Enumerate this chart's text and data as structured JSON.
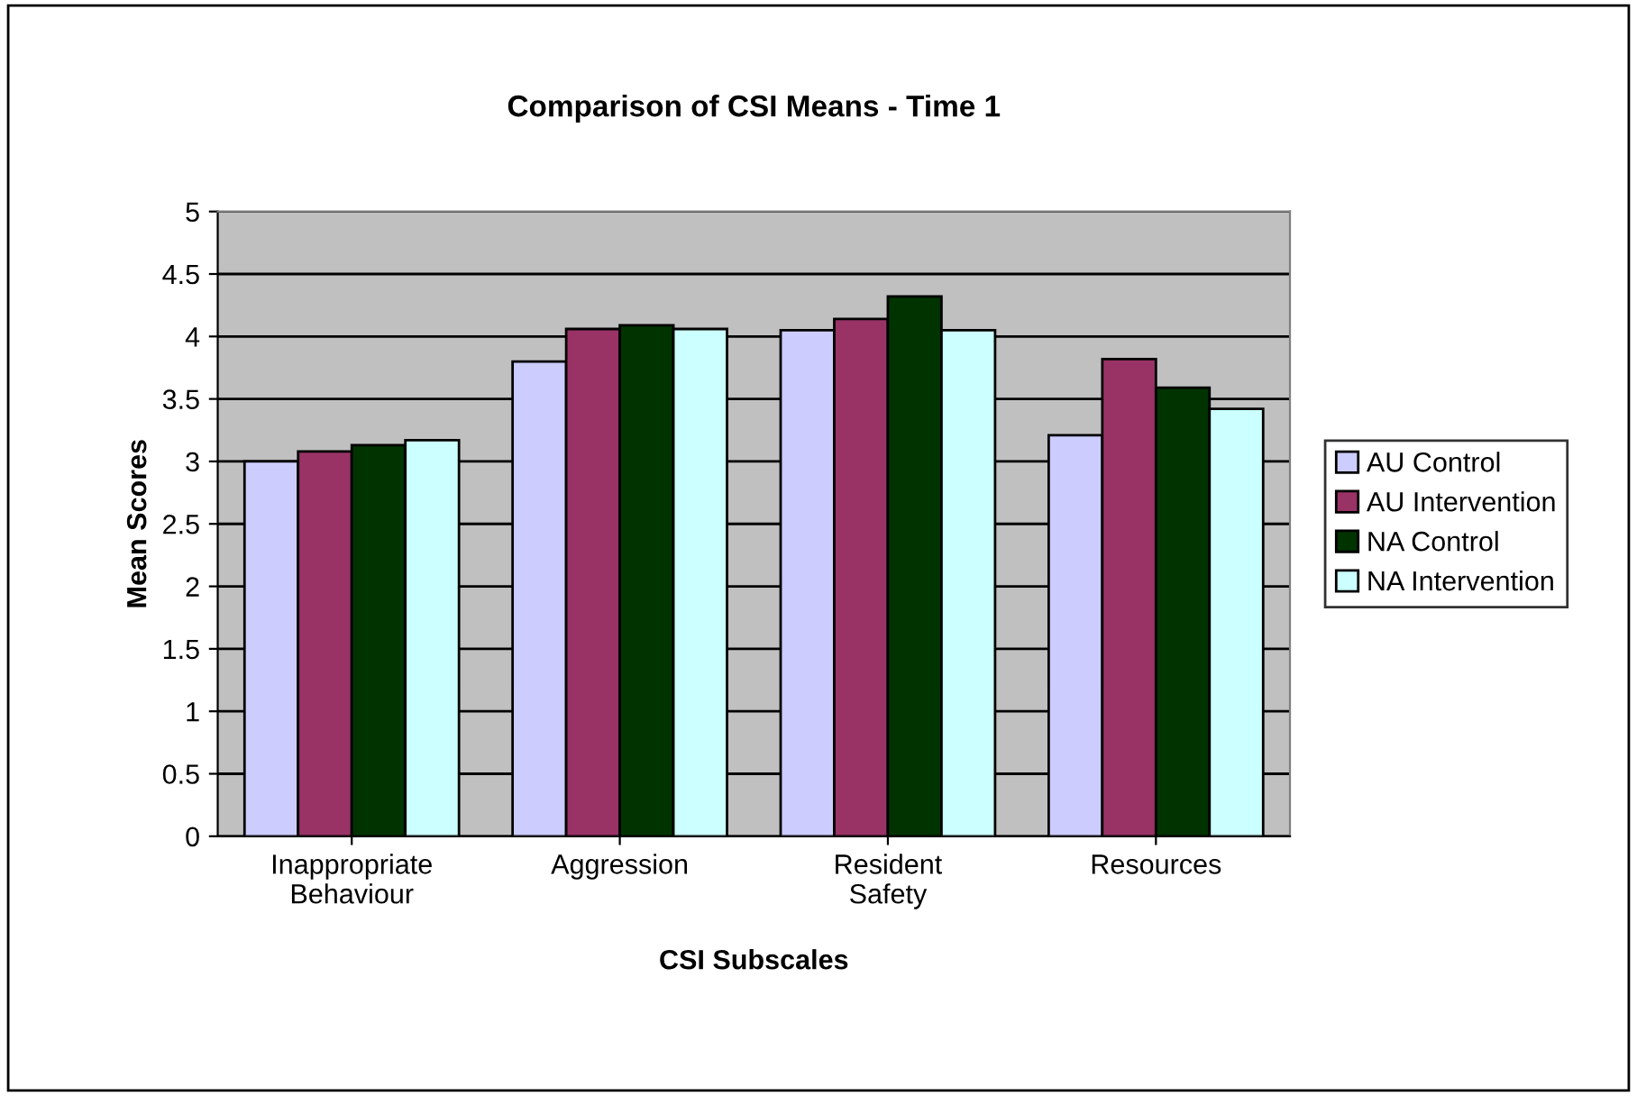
{
  "chart_data": {
    "type": "bar",
    "title": "Comparison of CSI Means - Time 1",
    "xlabel": "CSI Subscales",
    "ylabel": "Mean Scores",
    "categories": [
      "Inappropriate\nBehaviour",
      "Aggression",
      "Resident\nSafety",
      "Resources"
    ],
    "series": [
      {
        "name": "AU Control",
        "color": "#ccccff",
        "values": [
          3.0,
          3.8,
          4.05,
          3.21
        ]
      },
      {
        "name": "AU Intervention",
        "color": "#993366",
        "values": [
          3.08,
          4.06,
          4.14,
          3.82
        ]
      },
      {
        "name": "NA Control",
        "color": "#003300",
        "values": [
          3.13,
          4.09,
          4.32,
          3.59
        ]
      },
      {
        "name": "NA Intervention",
        "color": "#ccffff",
        "values": [
          3.17,
          4.06,
          4.05,
          3.42
        ]
      }
    ],
    "ylim": [
      0,
      5
    ],
    "yticks": [
      0,
      0.5,
      1,
      1.5,
      2,
      2.5,
      3,
      3.5,
      4,
      4.5,
      5
    ],
    "grid": "y",
    "legend": "right"
  }
}
